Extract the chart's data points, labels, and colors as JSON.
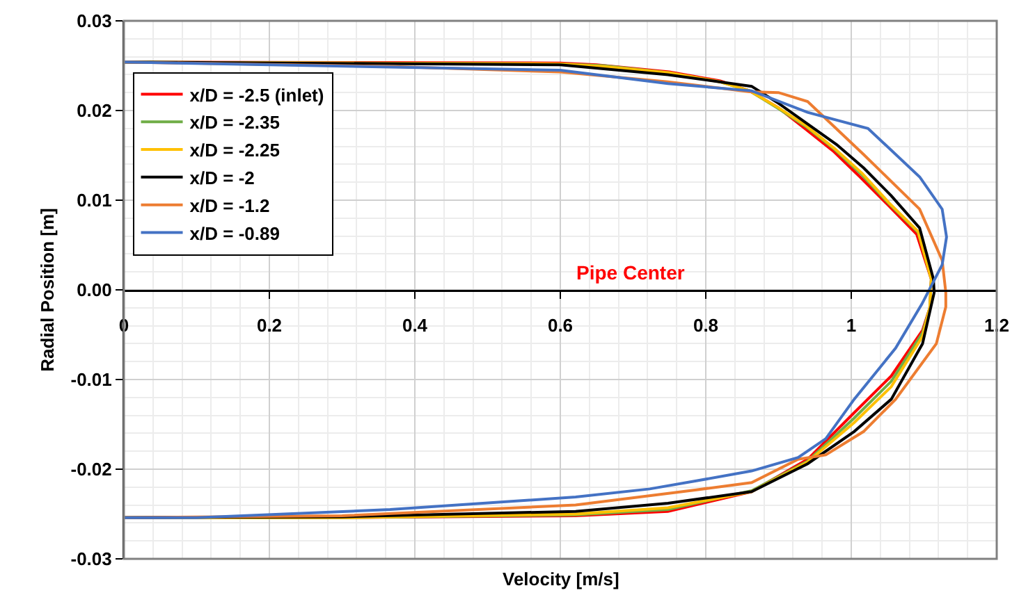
{
  "chart_data": {
    "type": "line",
    "xlabel": "Velocity [m/s]",
    "ylabel": "Radial Position [m]",
    "annotations": [
      "Pipe Center"
    ],
    "xlim": [
      0,
      1.2
    ],
    "xticks": [
      0,
      0.2,
      0.4,
      0.6,
      0.8,
      1,
      1.2
    ],
    "ylim": [
      -0.03,
      0.03
    ],
    "yticks": [
      -0.03,
      -0.02,
      -0.01,
      {
        "value": 0,
        "label": "0.00"
      },
      0.01,
      0.02,
      0.03
    ],
    "grid": true,
    "legend": "top left",
    "marker": "none",
    "line_style": "solid",
    "series": [
      {
        "name": "x/D = -2.5 (inlet)",
        "color": "#ff0000",
        "x": [
          0,
          0.6,
          0.65,
          0.75,
          0.82,
          0.86,
          0.9,
          0.936,
          0.975,
          1.012,
          1.05,
          1.09,
          1.11,
          1.108,
          1.098,
          1.055,
          1.004,
          0.94,
          0.863,
          0.748,
          0.621,
          0.3,
          0
        ],
        "values": [
          0.0254,
          0.0253,
          0.0251,
          0.0243,
          0.0233,
          0.0222,
          0.0203,
          0.018,
          0.0155,
          0.0126,
          0.0095,
          0.0062,
          0.0012,
          -0.002,
          -0.0045,
          -0.0096,
          -0.0137,
          -0.0189,
          -0.0225,
          -0.0247,
          -0.0252,
          -0.0254,
          -0.0254
        ]
      },
      {
        "name": "x/D = -2.35",
        "color": "#70ad47",
        "x": [
          0,
          0.6,
          0.66,
          0.75,
          0.82,
          0.86,
          0.9,
          0.938,
          0.978,
          1.015,
          1.052,
          1.092,
          1.11,
          1.108,
          1.098,
          1.055,
          1.004,
          0.94,
          0.863,
          0.748,
          0.621,
          0.3,
          0
        ],
        "values": [
          0.0254,
          0.0252,
          0.025,
          0.0242,
          0.0232,
          0.0222,
          0.0202,
          0.0182,
          0.0156,
          0.0128,
          0.0096,
          0.0064,
          0.0012,
          -0.002,
          -0.0048,
          -0.0102,
          -0.0143,
          -0.0191,
          -0.0224,
          -0.0245,
          -0.0251,
          -0.0254,
          -0.0254
        ]
      },
      {
        "name": "x/D = -2.25",
        "color": "#ffc000",
        "x": [
          0,
          0.6,
          0.66,
          0.75,
          0.82,
          0.86,
          0.9,
          0.938,
          0.978,
          1.015,
          1.052,
          1.092,
          1.11,
          1.108,
          1.098,
          1.055,
          1.004,
          0.94,
          0.863,
          0.748,
          0.621,
          0.3,
          0
        ],
        "values": [
          0.0254,
          0.0252,
          0.0249,
          0.0242,
          0.0232,
          0.0222,
          0.0203,
          0.0183,
          0.0157,
          0.013,
          0.0097,
          0.0065,
          0.0012,
          -0.002,
          -0.0052,
          -0.0108,
          -0.0148,
          -0.0192,
          -0.0225,
          -0.0243,
          -0.025,
          -0.0254,
          -0.0254
        ]
      },
      {
        "name": "x/D = -2",
        "color": "#000000",
        "x": [
          0,
          0.6,
          0.748,
          0.863,
          0.9,
          0.94,
          0.98,
          1.017,
          1.055,
          1.094,
          1.113,
          1.114,
          1.098,
          1.055,
          1.004,
          0.94,
          0.863,
          0.748,
          0.621,
          0.3,
          0
        ],
        "values": [
          0.0254,
          0.0251,
          0.024,
          0.0227,
          0.0208,
          0.0185,
          0.0162,
          0.0136,
          0.0105,
          0.0069,
          0.0012,
          -0.0003,
          -0.006,
          -0.0122,
          -0.0158,
          -0.0194,
          -0.0225,
          -0.0238,
          -0.0247,
          -0.0253,
          -0.0254
        ]
      },
      {
        "name": "x/D = -1.2",
        "color": "#ed7d31",
        "x": [
          0,
          0.372,
          0.6,
          0.748,
          0.86,
          0.9,
          0.94,
          1.017,
          1.094,
          1.125,
          1.13,
          1.13,
          1.117,
          1.061,
          1.017,
          0.965,
          0.927,
          0.863,
          0.787,
          0.621,
          0.3,
          0
        ],
        "values": [
          0.0254,
          0.0249,
          0.0243,
          0.0232,
          0.0221,
          0.022,
          0.021,
          0.0151,
          0.009,
          0.0033,
          -0.0003,
          -0.0019,
          -0.006,
          -0.0122,
          -0.0158,
          -0.0184,
          -0.0189,
          -0.0215,
          -0.0223,
          -0.024,
          -0.0252,
          -0.0254
        ]
      },
      {
        "name": "x/D = -0.89",
        "color": "#4472c4",
        "x": [
          0,
          0.6,
          0.748,
          0.863,
          0.94,
          1.023,
          1.094,
          1.125,
          1.131,
          1.125,
          1.097,
          1.061,
          1.004,
          0.965,
          0.927,
          0.863,
          0.787,
          0.723,
          0.621,
          0.366,
          0.1,
          0
        ],
        "values": [
          0.0254,
          0.0245,
          0.023,
          0.0222,
          0.0198,
          0.018,
          0.0126,
          0.009,
          0.0059,
          0.0028,
          -0.0016,
          -0.0065,
          -0.0122,
          -0.0166,
          -0.0187,
          -0.0202,
          -0.0213,
          -0.0222,
          -0.0231,
          -0.0245,
          -0.0254,
          -0.0254
        ]
      }
    ]
  }
}
